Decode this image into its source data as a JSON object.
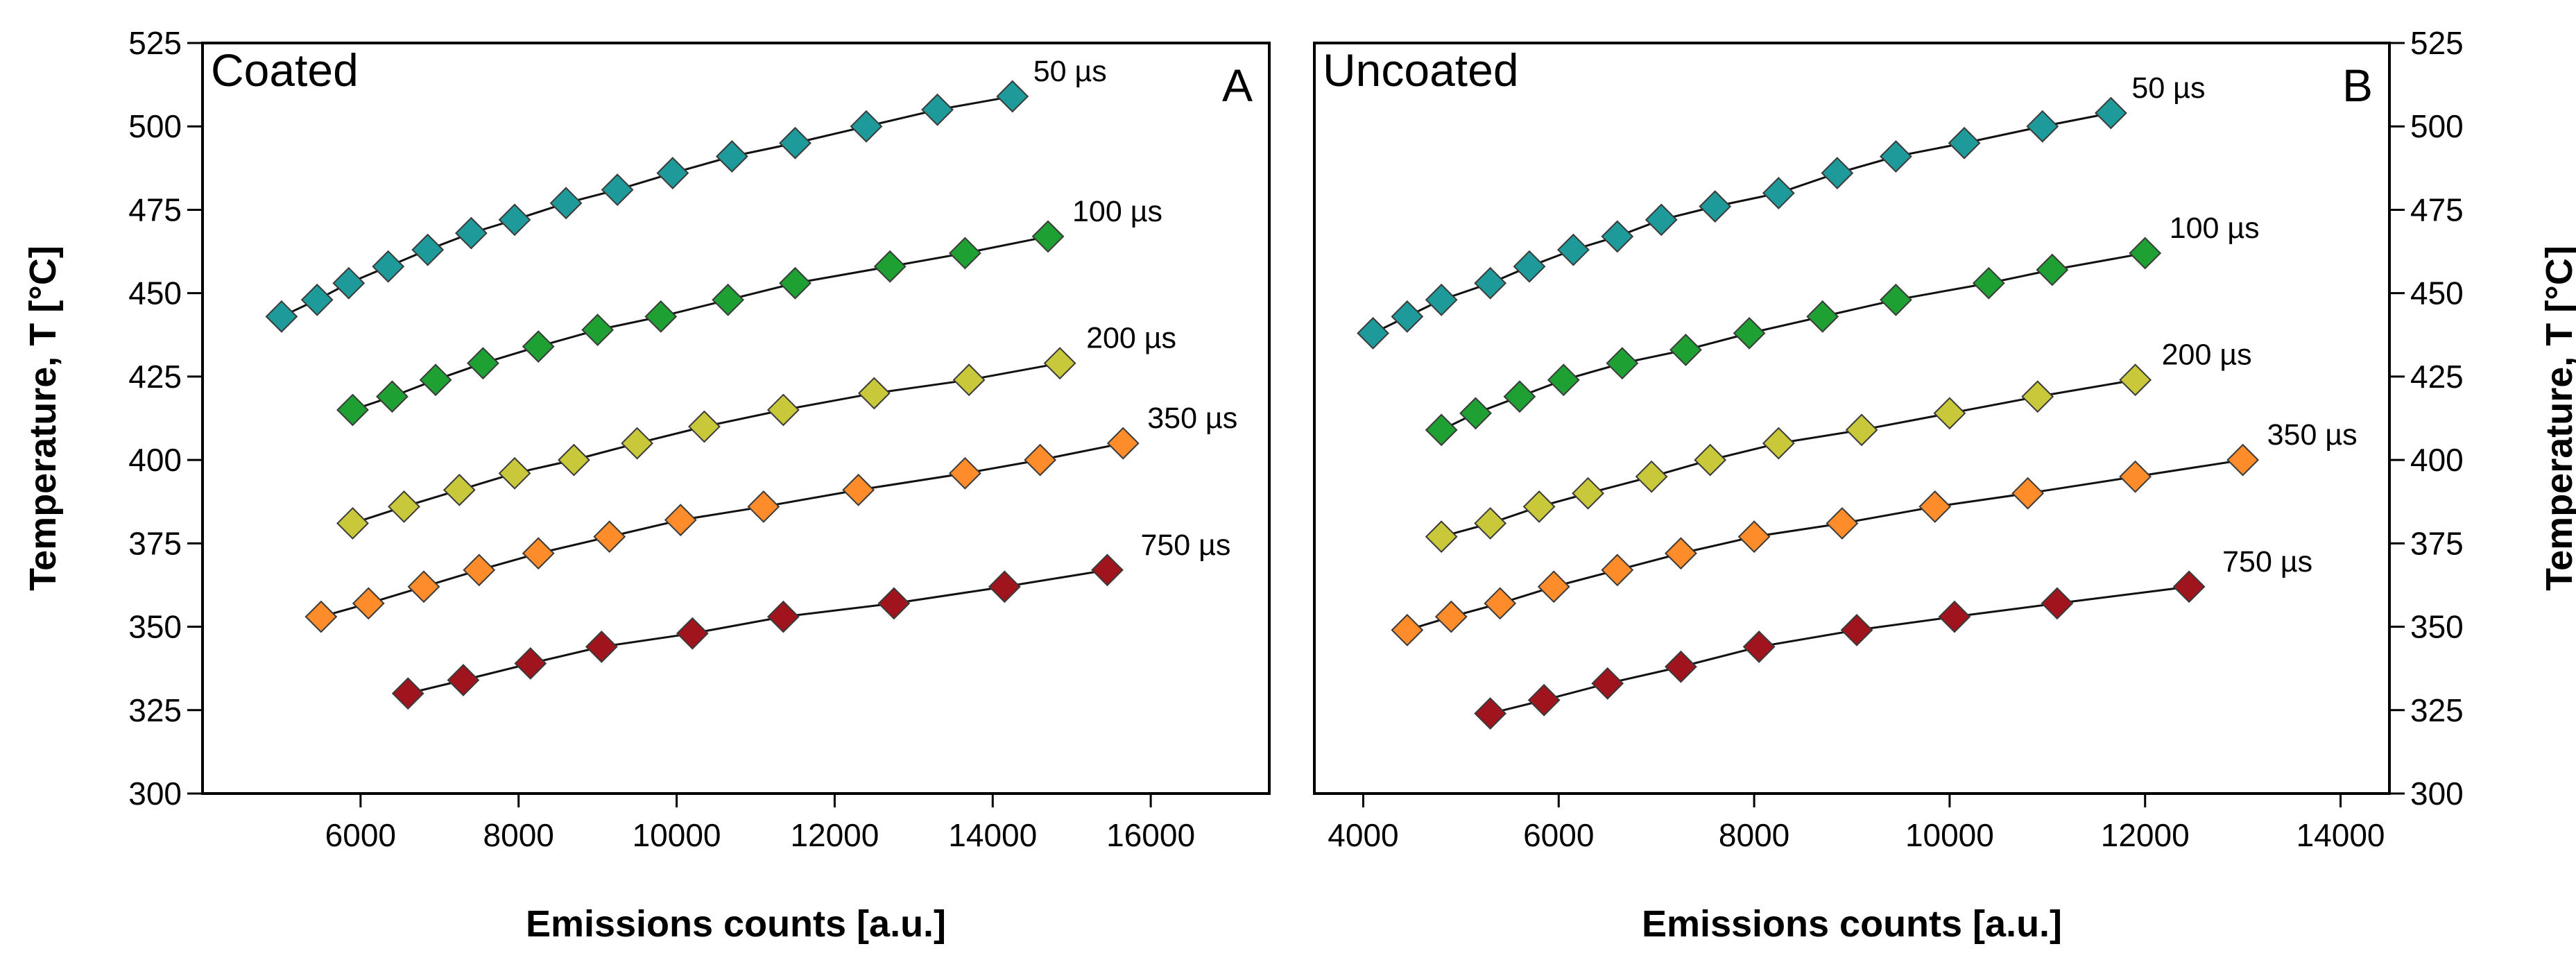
{
  "chart_data": [
    {
      "type": "scatter",
      "panel_title": "Coated",
      "panel_letter": "A",
      "xlabel": "Emissions counts [a.u.]",
      "ylabel": "Temperature, T [°C]",
      "xlim": [
        4000,
        17500
      ],
      "ylim": [
        300,
        525
      ],
      "xticks": [
        6000,
        8000,
        10000,
        12000,
        14000,
        16000
      ],
      "yticks": [
        300,
        325,
        350,
        375,
        400,
        425,
        450,
        475,
        500,
        525
      ],
      "y_axis_side": "left",
      "series": [
        {
          "name": "50 µs",
          "color": "#1f9a9a",
          "x": [
            5000,
            5450,
            5850,
            6350,
            6850,
            7400,
            7950,
            8600,
            9250,
            9950,
            10700,
            11500,
            12400,
            13300,
            14250
          ],
          "y": [
            443,
            448,
            453,
            458,
            463,
            468,
            472,
            477,
            481,
            486,
            491,
            495,
            500,
            505,
            509
          ]
        },
        {
          "name": "100 µs",
          "color": "#1fa033",
          "x": [
            5900,
            6400,
            6950,
            7550,
            8250,
            9000,
            9800,
            10650,
            11500,
            12700,
            13650,
            14700
          ],
          "y": [
            415,
            419,
            424,
            429,
            434,
            439,
            443,
            448,
            453,
            458,
            462,
            467
          ]
        },
        {
          "name": "200 µs",
          "color": "#c8c83a",
          "x": [
            5900,
            6550,
            7250,
            7950,
            8700,
            9500,
            10350,
            11350,
            12500,
            13700,
            14850
          ],
          "y": [
            381,
            386,
            391,
            396,
            400,
            405,
            410,
            415,
            420,
            424,
            429
          ]
        },
        {
          "name": "350 µs",
          "color": "#ff8c2a",
          "x": [
            5500,
            6100,
            6800,
            7500,
            8250,
            9150,
            10050,
            11100,
            12300,
            13650,
            14600,
            15650
          ],
          "y": [
            353,
            357,
            362,
            367,
            372,
            377,
            382,
            386,
            391,
            396,
            400,
            405
          ]
        },
        {
          "name": "750 µs",
          "color": "#a0141e",
          "x": [
            6600,
            7300,
            8150,
            9050,
            10200,
            11350,
            12750,
            14150,
            15450
          ],
          "y": [
            330,
            334,
            339,
            344,
            348,
            353,
            357,
            362,
            367
          ]
        }
      ]
    },
    {
      "type": "scatter",
      "panel_title": "Uncoated",
      "panel_letter": "B",
      "xlabel": "Emissions counts [a.u.]",
      "ylabel": "Temperature, T [°C]",
      "xlim": [
        3500,
        14500
      ],
      "ylim": [
        300,
        525
      ],
      "xticks": [
        4000,
        6000,
        8000,
        10000,
        12000,
        14000
      ],
      "yticks": [
        300,
        325,
        350,
        375,
        400,
        425,
        450,
        475,
        500,
        525
      ],
      "y_axis_side": "right",
      "series": [
        {
          "name": "50 µs",
          "color": "#1f9a9a",
          "x": [
            4100,
            4450,
            4800,
            5300,
            5700,
            6150,
            6600,
            7050,
            7600,
            8250,
            8850,
            9450,
            10150,
            10950,
            11650
          ],
          "y": [
            438,
            443,
            448,
            453,
            458,
            463,
            467,
            472,
            476,
            480,
            486,
            491,
            495,
            500,
            504
          ]
        },
        {
          "name": "100 µs",
          "color": "#1fa033",
          "x": [
            4800,
            5150,
            5600,
            6050,
            6650,
            7300,
            7950,
            8700,
            9450,
            10400,
            11050,
            12000
          ],
          "y": [
            409,
            414,
            419,
            424,
            429,
            433,
            438,
            443,
            448,
            453,
            457,
            462
          ]
        },
        {
          "name": "200 µs",
          "color": "#c8c83a",
          "x": [
            4800,
            5300,
            5800,
            6300,
            6950,
            7550,
            8250,
            9100,
            10000,
            10900,
            11900
          ],
          "y": [
            377,
            381,
            386,
            390,
            395,
            400,
            405,
            409,
            414,
            419,
            424
          ]
        },
        {
          "name": "350 µs",
          "color": "#ff8c2a",
          "x": [
            4450,
            4900,
            5400,
            5950,
            6600,
            7250,
            8000,
            8900,
            9850,
            10800,
            11900,
            13000
          ],
          "y": [
            349,
            353,
            357,
            362,
            367,
            372,
            377,
            381,
            386,
            390,
            395,
            400
          ]
        },
        {
          "name": "750 µs",
          "color": "#a0141e",
          "x": [
            5300,
            5850,
            6500,
            7250,
            8050,
            9050,
            10050,
            11100,
            12450
          ],
          "y": [
            324,
            328,
            333,
            338,
            344,
            349,
            353,
            357,
            362
          ]
        }
      ]
    }
  ]
}
